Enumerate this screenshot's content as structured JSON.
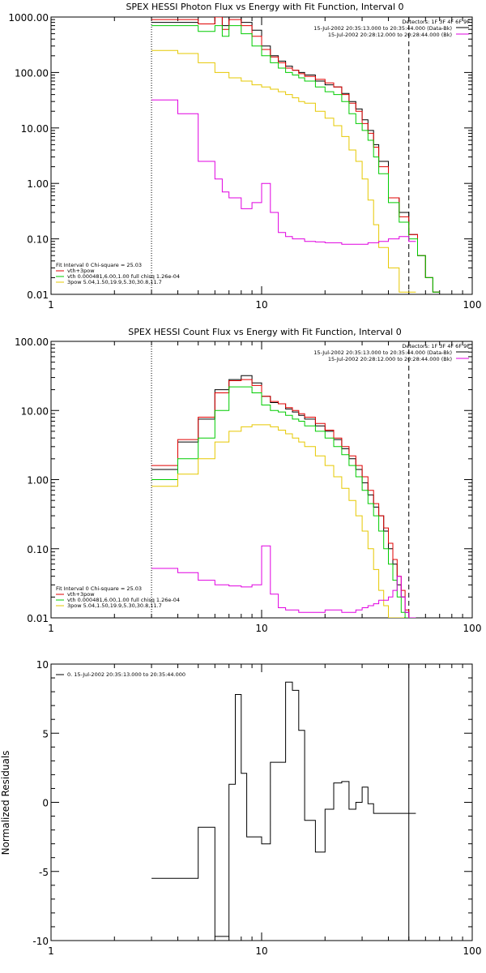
{
  "chart_data": [
    {
      "type": "line",
      "title": "SPEX HESSI Photon Flux vs Energy with Fit Function, Interval 0",
      "xlabel": "",
      "ylabel": "",
      "xscale": "log",
      "yscale": "log",
      "xlim": [
        1,
        100
      ],
      "ylim": [
        0.01,
        1000
      ],
      "xticks": [
        "1",
        "10",
        "100"
      ],
      "yticks": [
        "1000.00",
        "100.00",
        "10.00",
        "1.00",
        "0.10",
        "0.01"
      ],
      "header": [
        "Detectors: 1F 3F 4F 6F 9F",
        "15-Jul-2002 20:35:13.000 to 20:35:44.000 (Data-Bk)",
        "15-Jul-2002 20:28:12.000 to 20:28:44.000 (Bk)"
      ],
      "legend": [
        "Fit Interval 0   Chi-square = 25.03",
        "vth+3pow",
        "vth 0.000481,6.00,1.00   full chisq 1.26e-04",
        "3pow 5.04,1.50,19.9,5.30,30.8,11.7"
      ],
      "legend_colors": [
        "#000000",
        "#e00000",
        "#00cc00",
        "#e6c800"
      ],
      "fit_start": 3,
      "fit_end": 50,
      "series": [
        {
          "color": "#000000",
          "x": [
            3,
            3.5,
            4,
            5,
            6,
            6.5,
            7,
            8,
            9,
            10,
            11,
            12,
            13,
            14,
            15,
            16,
            18,
            20,
            22,
            24,
            26,
            28,
            30,
            32,
            34,
            36,
            40,
            45,
            50,
            55,
            60,
            65
          ],
          "y": [
            800,
            800,
            800,
            750,
            1000,
            700,
            1000,
            800,
            580,
            300,
            200,
            160,
            130,
            110,
            100,
            90,
            70,
            60,
            55,
            42,
            30,
            22,
            14,
            9,
            5,
            2.5,
            0.55,
            0.3,
            0.12,
            0.05,
            0.02,
            0.011
          ]
        },
        {
          "color": "#e00000",
          "x": [
            3,
            3.5,
            4,
            5,
            6,
            6.5,
            7,
            8,
            9,
            10,
            11,
            12,
            13,
            14,
            15,
            16,
            18,
            20,
            22,
            24,
            26,
            28,
            30,
            32,
            34,
            36,
            40,
            45,
            50,
            55,
            60,
            65
          ],
          "y": [
            900,
            900,
            900,
            750,
            1000,
            600,
            900,
            700,
            450,
            260,
            190,
            150,
            120,
            110,
            95,
            85,
            75,
            65,
            55,
            40,
            28,
            20,
            12,
            8,
            4.5,
            2,
            0.55,
            0.25,
            0.12,
            0.05,
            0.02,
            0.011
          ]
        },
        {
          "color": "#00cc00",
          "x": [
            3,
            3.5,
            4,
            5,
            6,
            6.5,
            7,
            8,
            9,
            10,
            11,
            12,
            13,
            14,
            15,
            16,
            18,
            20,
            22,
            24,
            26,
            28,
            30,
            32,
            34,
            36,
            40,
            45,
            50,
            55,
            60,
            65
          ],
          "y": [
            700,
            700,
            700,
            550,
            700,
            450,
            700,
            500,
            300,
            200,
            150,
            120,
            100,
            90,
            80,
            70,
            55,
            45,
            40,
            30,
            18,
            12,
            9,
            6,
            3,
            1.5,
            0.45,
            0.2,
            0.1,
            0.05,
            0.02,
            0.011
          ]
        },
        {
          "color": "#e6c800",
          "x": [
            3,
            3.5,
            4,
            5,
            6,
            6.5,
            7,
            8,
            9,
            10,
            11,
            12,
            13,
            14,
            15,
            16,
            18,
            20,
            22,
            24,
            26,
            28,
            30,
            32,
            34,
            36,
            40,
            45,
            50
          ],
          "y": [
            250,
            250,
            220,
            150,
            100,
            100,
            80,
            70,
            60,
            55,
            50,
            45,
            40,
            35,
            30,
            28,
            20,
            15,
            11,
            7,
            4,
            2.5,
            1.2,
            0.5,
            0.18,
            0.07,
            0.03,
            0.011,
            0.011
          ]
        },
        {
          "color": "#e000e0",
          "x": [
            3,
            3.5,
            4,
            5,
            6,
            6.5,
            7,
            8,
            9,
            10,
            11,
            12,
            13,
            14,
            15,
            16,
            18,
            20,
            22,
            24,
            26,
            28,
            30,
            32,
            34,
            36,
            40,
            45,
            50
          ],
          "y": [
            32,
            32,
            18,
            2.5,
            1.2,
            0.7,
            0.55,
            0.35,
            0.45,
            1,
            0.3,
            0.13,
            0.11,
            0.1,
            0.1,
            0.09,
            0.088,
            0.085,
            0.085,
            0.08,
            0.08,
            0.08,
            0.08,
            0.085,
            0.085,
            0.09,
            0.1,
            0.11,
            0.09
          ]
        }
      ]
    },
    {
      "type": "line",
      "title": "SPEX HESSI Count Flux vs Energy with Fit Function, Interval 0",
      "xlabel": "",
      "ylabel": "",
      "xscale": "log",
      "yscale": "log",
      "xlim": [
        1,
        100
      ],
      "ylim": [
        0.01,
        100
      ],
      "xticks": [
        "1",
        "10",
        "100"
      ],
      "yticks": [
        "100.00",
        "10.00",
        "1.00",
        "0.10",
        "0.01"
      ],
      "header": [
        "Detectors: 1F 3F 4F 6F 9F",
        "15-Jul-2002 20:35:13.000 to 20:35:44.000 (Data-Bk)",
        "15-Jul-2002 20:28:12.000 to 20:28:44.000 (Bk)"
      ],
      "legend": [
        "Fit Interval 0   Chi-square = 25.03",
        "vth+3pow",
        "vth 0.000481,6.00,1.00   full chisq 1.26e-04",
        "3pow 5.04,1.50,19.9,5.30,30.8,11.7"
      ],
      "legend_colors": [
        "#000000",
        "#e00000",
        "#00cc00",
        "#e6c800"
      ],
      "fit_start": 3,
      "fit_end": 50,
      "series": [
        {
          "color": "#000000",
          "x": [
            3,
            4,
            5,
            6,
            7,
            8,
            9,
            10,
            11,
            12,
            13,
            14,
            15,
            16,
            18,
            20,
            22,
            24,
            26,
            28,
            30,
            32,
            34,
            36,
            38,
            40,
            42,
            44,
            46,
            48,
            50
          ],
          "y": [
            1.4,
            3.5,
            7.5,
            20,
            28,
            32,
            25,
            16,
            13,
            12.5,
            10.5,
            9.5,
            8.5,
            7.5,
            6,
            5,
            3.8,
            2.8,
            2,
            1.4,
            0.9,
            0.6,
            0.4,
            0.3,
            0.18,
            0.1,
            0.06,
            0.03,
            0.02,
            0.012,
            0.01
          ]
        },
        {
          "color": "#e00000",
          "x": [
            3,
            4,
            5,
            6,
            7,
            8,
            9,
            10,
            11,
            12,
            13,
            14,
            15,
            16,
            18,
            20,
            22,
            24,
            26,
            28,
            30,
            32,
            34,
            36,
            38,
            40,
            42,
            44,
            46,
            48,
            50
          ],
          "y": [
            1.6,
            3.8,
            8,
            18,
            27,
            28,
            23,
            16,
            13.5,
            12.5,
            11,
            10,
            9,
            8,
            6.5,
            5.2,
            4,
            3,
            2.2,
            1.6,
            1.1,
            0.7,
            0.45,
            0.3,
            0.2,
            0.12,
            0.07,
            0.04,
            0.025,
            0.013,
            0.01
          ]
        },
        {
          "color": "#00cc00",
          "x": [
            3,
            4,
            5,
            6,
            7,
            8,
            9,
            10,
            11,
            12,
            13,
            14,
            15,
            16,
            18,
            20,
            22,
            24,
            26,
            28,
            30,
            32,
            34,
            36,
            38,
            40,
            42,
            44,
            46,
            48,
            50
          ],
          "y": [
            1,
            2,
            4,
            10,
            22,
            22,
            18,
            12,
            10,
            9.5,
            8.5,
            7.5,
            7,
            6,
            5,
            4,
            3,
            2.3,
            1.6,
            1.1,
            0.7,
            0.45,
            0.3,
            0.18,
            0.1,
            0.06,
            0.035,
            0.02,
            0.012,
            0.01,
            0.01
          ]
        },
        {
          "color": "#e6c800",
          "x": [
            3,
            4,
            5,
            6,
            7,
            8,
            9,
            10,
            11,
            12,
            13,
            14,
            15,
            16,
            18,
            20,
            22,
            24,
            26,
            28,
            30,
            32,
            34,
            36,
            38,
            40,
            42,
            44
          ],
          "y": [
            0.8,
            1.2,
            2,
            3.5,
            5,
            5.8,
            6.2,
            6.2,
            5.8,
            5.2,
            4.6,
            4,
            3.5,
            3,
            2.2,
            1.6,
            1.1,
            0.75,
            0.5,
            0.3,
            0.18,
            0.1,
            0.05,
            0.025,
            0.015,
            0.01,
            0.01,
            0.01
          ]
        },
        {
          "color": "#e000e0",
          "x": [
            3,
            4,
            5,
            6,
            7,
            8,
            9,
            10,
            11,
            12,
            13,
            14,
            15,
            16,
            18,
            20,
            22,
            24,
            26,
            28,
            30,
            32,
            34,
            36,
            38,
            40,
            42,
            44,
            46,
            48,
            50
          ],
          "y": [
            0.052,
            0.045,
            0.035,
            0.03,
            0.029,
            0.028,
            0.03,
            0.11,
            0.022,
            0.014,
            0.013,
            0.013,
            0.012,
            0.012,
            0.012,
            0.013,
            0.013,
            0.012,
            0.012,
            0.013,
            0.014,
            0.015,
            0.016,
            0.018,
            0.018,
            0.02,
            0.025,
            0.04,
            0.02,
            0.012,
            0.01
          ]
        }
      ]
    },
    {
      "type": "line",
      "title": "",
      "xlabel": "",
      "ylabel": "Normalized Residuals",
      "xscale": "log",
      "yscale": "linear",
      "xlim": [
        1,
        100
      ],
      "ylim": [
        -10,
        10
      ],
      "xticks": [
        "1",
        "10",
        "100"
      ],
      "yticks": [
        "10",
        "5",
        "0",
        "-5",
        "-10"
      ],
      "legend": [
        "0. 15-Jul-2002 20:35:13.000 to 20:35:44.000"
      ],
      "series": [
        {
          "color": "#000000",
          "x": [
            3,
            3.5,
            4,
            5,
            6,
            7,
            7.5,
            8,
            8.5,
            9,
            10,
            11,
            12,
            13,
            14,
            15,
            16,
            18,
            20,
            22,
            24,
            26,
            28,
            30,
            32,
            34,
            36,
            40,
            45,
            50
          ],
          "y": [
            -5.5,
            -5.5,
            -5.5,
            -1.8,
            -9.7,
            1.3,
            7.8,
            2.1,
            -2.5,
            -2.5,
            -3,
            2.9,
            2.9,
            8.7,
            8.1,
            5.2,
            -1.3,
            -3.6,
            -0.5,
            1.4,
            1.5,
            -0.5,
            0,
            1.1,
            -0.1,
            -0.8,
            -0.8,
            -0.8,
            -0.8,
            -0.8
          ]
        }
      ]
    }
  ]
}
